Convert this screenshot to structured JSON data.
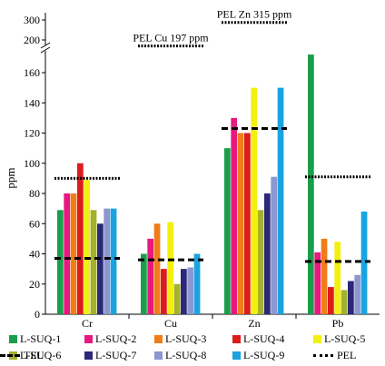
{
  "chart_data": {
    "type": "bar",
    "ylabel": "ppm",
    "xlabel": "",
    "categories": [
      "Cr",
      "Cu",
      "Zn",
      "Pb"
    ],
    "y_ticks_lower": [
      0,
      20,
      40,
      60,
      80,
      100,
      120,
      140,
      160
    ],
    "y_ticks_upper": [
      200,
      300
    ],
    "y_axis_break": true,
    "series": [
      {
        "name": "L-SUQ-1",
        "color": "#1b9e4b",
        "values": [
          69,
          40,
          110,
          172
        ]
      },
      {
        "name": "L-SUQ-2",
        "color": "#e6197f",
        "values": [
          80,
          50,
          130,
          41
        ]
      },
      {
        "name": "L-SUQ-3",
        "color": "#f07d1a",
        "values": [
          80,
          60,
          120,
          50
        ]
      },
      {
        "name": "L-SUQ-4",
        "color": "#dd1c1c",
        "values": [
          100,
          30,
          120,
          18
        ]
      },
      {
        "name": "L-SUQ-5",
        "color": "#f3ef0f",
        "values": [
          89,
          61,
          150,
          48
        ]
      },
      {
        "name": "L-SUQ-6",
        "color": "#a3b22a",
        "values": [
          69,
          20,
          69,
          16
        ]
      },
      {
        "name": "L-SUQ-7",
        "color": "#2c2878",
        "values": [
          60,
          30,
          80,
          22
        ]
      },
      {
        "name": "L-SUQ-8",
        "color": "#8c97d0",
        "values": [
          70,
          31,
          91,
          26
        ]
      },
      {
        "name": "L-SUQ-9",
        "color": "#1aa3e0",
        "values": [
          70,
          40,
          150,
          68
        ]
      }
    ],
    "pel": {
      "name": "PEL",
      "values": [
        90,
        197,
        315,
        91
      ]
    },
    "tel": {
      "name": "TEL",
      "values": [
        37,
        36,
        123,
        35
      ]
    },
    "annotations": [
      {
        "category": "Cu",
        "text": "PEL Cu 197 ppm"
      },
      {
        "category": "Zn",
        "text": "PEL Zn 315 ppm"
      }
    ],
    "legend_position": "bottom"
  }
}
